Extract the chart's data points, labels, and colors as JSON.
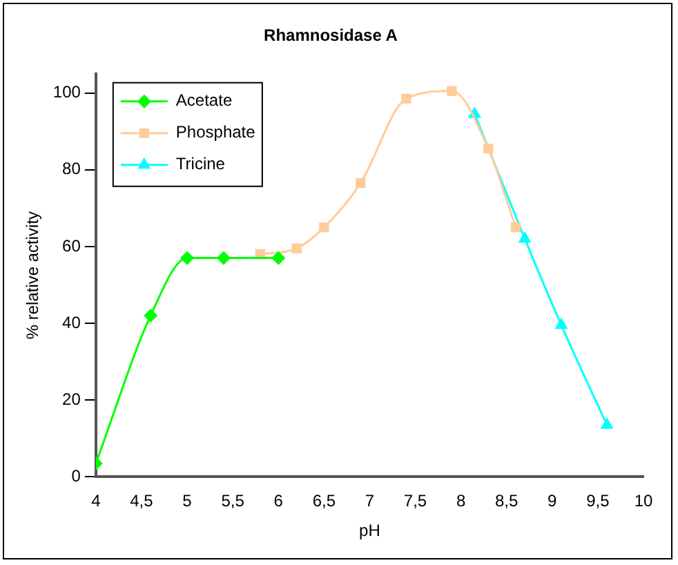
{
  "chart_data": {
    "type": "line",
    "title": "Rhamnosidase A",
    "xlabel": "pH",
    "ylabel": "% relative activity",
    "xlim": [
      4,
      10
    ],
    "xticks": [
      4,
      {
        "value": 4.5,
        "label": "4,5"
      },
      5,
      {
        "value": 5.5,
        "label": "5,5"
      },
      6,
      {
        "value": 6.5,
        "label": "6,5"
      },
      7,
      {
        "value": 7.5,
        "label": "7,5"
      },
      8,
      {
        "value": 8.5,
        "label": "8,5"
      },
      9,
      {
        "value": 9.5,
        "label": "9,5"
      },
      10
    ],
    "ylim": [
      0,
      105
    ],
    "yticks": [
      0,
      20,
      40,
      60,
      80,
      100
    ],
    "grid": false,
    "legend": "top left",
    "series": [
      {
        "name": "Acetate",
        "color": "#00ff00",
        "marker": "diamond",
        "x": [
          4,
          4.6,
          5,
          5.4,
          6
        ],
        "values": [
          3.5,
          42,
          57,
          57,
          57
        ]
      },
      {
        "name": "Phosphate",
        "color": "#ffcc99",
        "marker": "square",
        "x": [
          5.8,
          6.2,
          6.5,
          6.9,
          7.4,
          7.9,
          8.3,
          8.6
        ],
        "values": [
          58,
          59.5,
          65,
          76.5,
          98.5,
          100.5,
          85.5,
          65
        ]
      },
      {
        "name": "Tricine",
        "color": "#00ffff",
        "marker": "triangle",
        "x": [
          8.15,
          8.7,
          9.1,
          9.6
        ],
        "values": [
          94.5,
          62,
          39.5,
          13.5
        ]
      }
    ]
  }
}
